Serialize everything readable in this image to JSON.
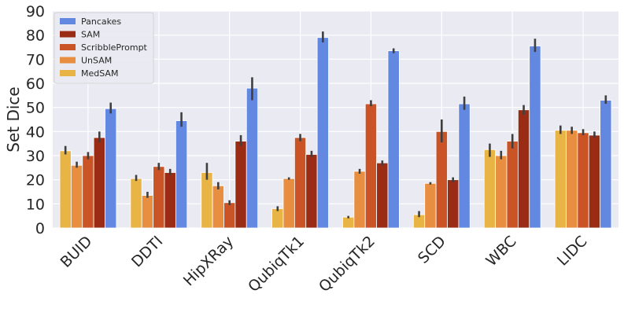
{
  "chart_data": {
    "type": "bar",
    "title": "",
    "xlabel": "",
    "ylabel": "Set Dice",
    "ylim": [
      0,
      90
    ],
    "yticks": [
      0,
      10,
      20,
      30,
      40,
      50,
      60,
      70,
      80,
      90
    ],
    "grid": true,
    "legend_position": "top-left",
    "categories": [
      "BUID",
      "DDTI",
      "HipXRay",
      "QubiqTk1",
      "QubiqTk2",
      "SCD",
      "WBC",
      "LIDC"
    ],
    "series": [
      {
        "name": "MedSAM",
        "color": "#E8B446",
        "values": [
          32,
          20.5,
          23,
          8,
          4.5,
          5.5,
          32.5,
          40.5
        ],
        "err_low": [
          30.5,
          19.5,
          20,
          7,
          4,
          4.5,
          29.5,
          39
        ],
        "err_high": [
          34,
          22,
          27,
          9,
          5,
          7,
          35,
          42.5
        ]
      },
      {
        "name": "UnSAM",
        "color": "#E88E40",
        "values": [
          26,
          13.5,
          17.5,
          20.5,
          23.5,
          18.5,
          30,
          40.5
        ],
        "err_low": [
          25,
          12.5,
          16,
          20,
          22.5,
          18,
          28.5,
          39
        ],
        "err_high": [
          27.5,
          15,
          19,
          21,
          24.5,
          19,
          32,
          42
        ]
      },
      {
        "name": "ScribblePrompt",
        "color": "#CB5427",
        "values": [
          30,
          25.5,
          10.5,
          37.5,
          51.5,
          40,
          36,
          39.5
        ],
        "err_low": [
          28.5,
          24,
          9.5,
          36,
          50.5,
          35.5,
          33,
          38.5
        ],
        "err_high": [
          31.5,
          27,
          11.5,
          39,
          53,
          45,
          39,
          41
        ]
      },
      {
        "name": "SAM",
        "color": "#9A2C16",
        "values": [
          37.5,
          23,
          36,
          30.5,
          27,
          20,
          49,
          38.5
        ],
        "err_low": [
          35.5,
          22,
          34,
          29.5,
          26,
          19,
          47,
          37.5
        ],
        "err_high": [
          40,
          24.5,
          38.5,
          32,
          28,
          21,
          51,
          40
        ]
      },
      {
        "name": "Pancakes",
        "color": "#6288E2",
        "values": [
          49.5,
          44.5,
          58,
          79,
          73.5,
          51.5,
          75.5,
          53
        ],
        "err_low": [
          47.5,
          42,
          53,
          77,
          72.5,
          49,
          73,
          51.5
        ],
        "err_high": [
          52,
          48,
          62.5,
          81.5,
          74.5,
          54.5,
          78.5,
          55
        ]
      }
    ],
    "legend_order": [
      "Pancakes",
      "SAM",
      "ScribblePrompt",
      "UnSAM",
      "MedSAM"
    ]
  }
}
